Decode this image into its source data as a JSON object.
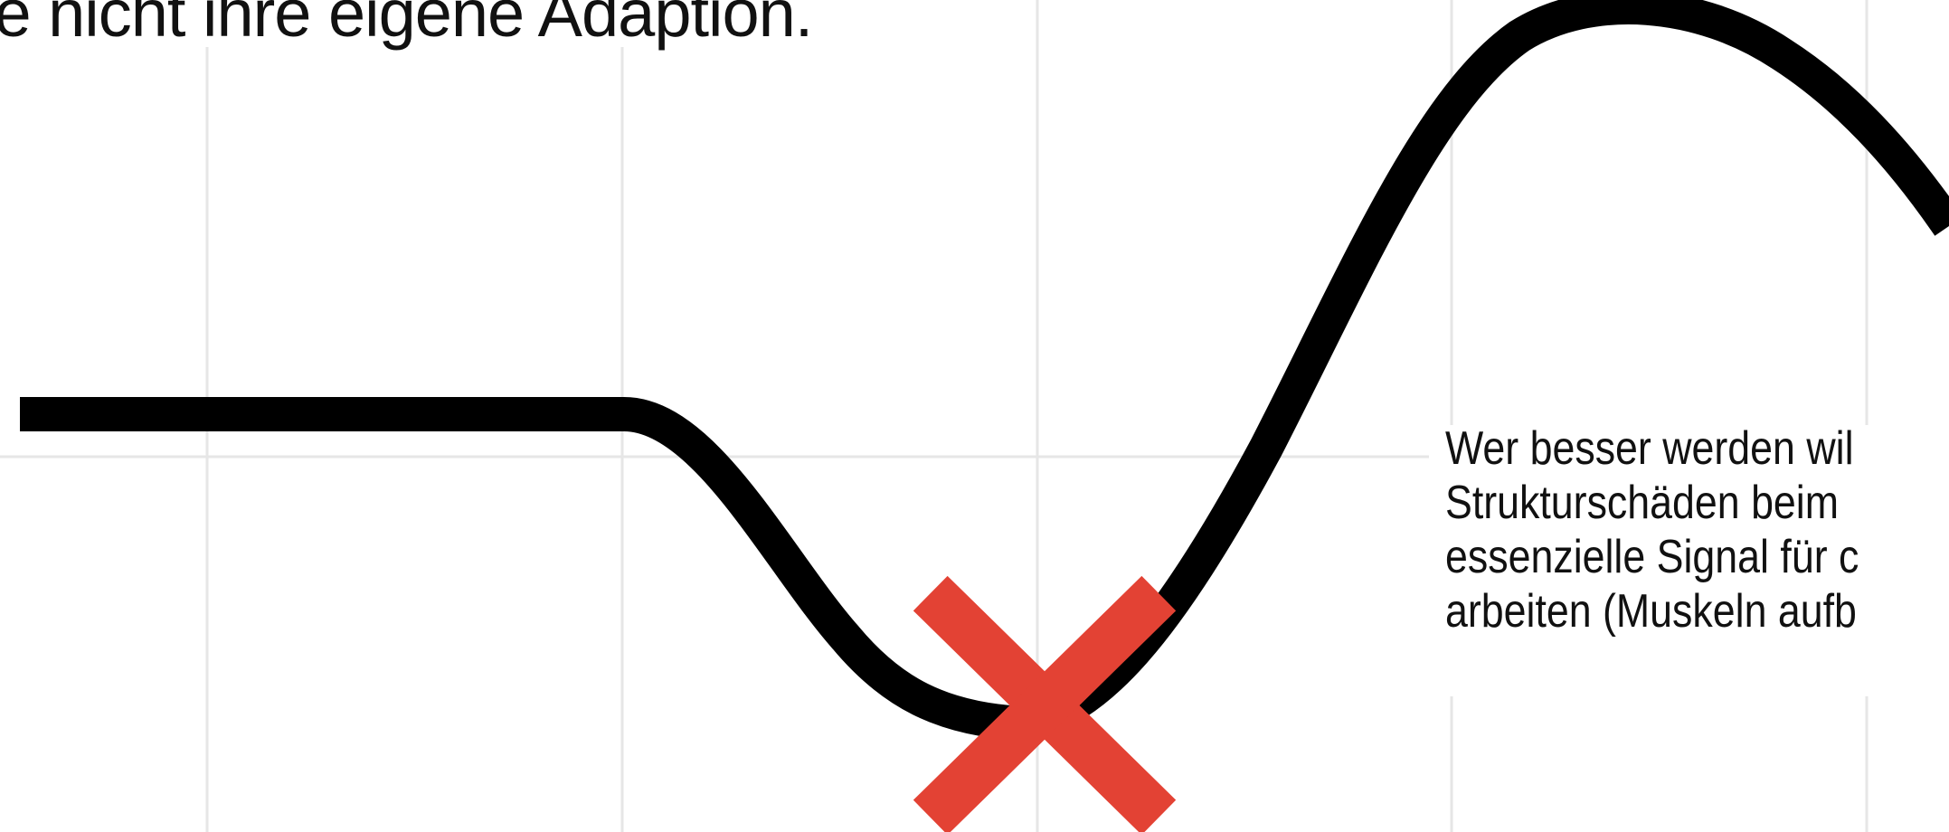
{
  "headline": "ie nicht ihre eigene Adaption.",
  "note_lines": [
    "Wer besser werden wil",
    "Strukturschäden beim",
    "essenzielle Signal für c",
    "arbeiten (Muskeln aufb"
  ],
  "marker": {
    "icon": "cross-icon",
    "color": "#E34234"
  },
  "curve": {
    "color": "#000000"
  },
  "grid": {
    "color": "#e6e6e6",
    "visible": true
  }
}
